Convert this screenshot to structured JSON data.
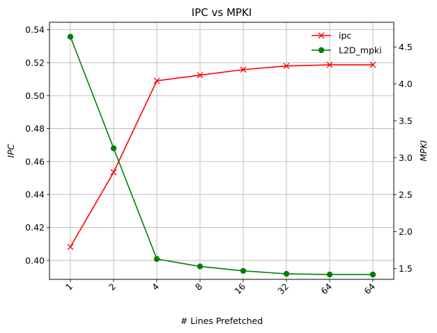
{
  "chart_data": {
    "type": "line",
    "title": "IPC vs MPKI",
    "xlabel": "# Lines Prefetched",
    "ylabel_left": "IPC",
    "ylabel_right": "MPKI",
    "categories": [
      "1",
      "2",
      "4",
      "8",
      "16",
      "32",
      "64",
      "64"
    ],
    "series": [
      {
        "name": "ipc",
        "axis": "left",
        "color": "#ff0000",
        "marker": "x",
        "values": [
          0.4082,
          0.4535,
          0.509,
          0.5124,
          0.5158,
          0.518,
          0.5187,
          0.5187
        ]
      },
      {
        "name": "L2D_mpki",
        "axis": "right",
        "color": "#008000",
        "marker": "o",
        "values": [
          4.64,
          3.13,
          1.63,
          1.53,
          1.47,
          1.43,
          1.42,
          1.42
        ]
      }
    ],
    "ylim_left": [
      0.3885,
      0.5445
    ],
    "yticks_left": [
      "0.40",
      "0.42",
      "0.44",
      "0.46",
      "0.48",
      "0.50",
      "0.52",
      "0.54"
    ],
    "ylim_right": [
      1.355,
      4.835
    ],
    "yticks_right": [
      "1.5",
      "2.0",
      "2.5",
      "3.0",
      "3.5",
      "4.0",
      "4.5"
    ],
    "grid": true,
    "legend_position": "top-right"
  }
}
